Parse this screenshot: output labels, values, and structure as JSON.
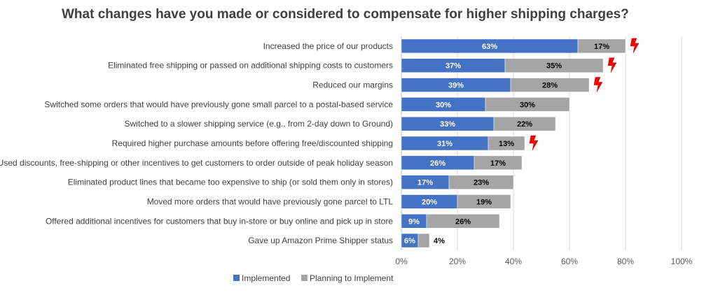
{
  "chart_data": {
    "type": "bar",
    "orientation": "horizontal",
    "stacked": true,
    "title": "What changes have you made or considered to compensate for higher shipping charges?",
    "xlabel": "",
    "ylabel": "",
    "xlim": [
      0,
      100
    ],
    "x_ticks": [
      "0%",
      "20%",
      "40%",
      "60%",
      "80%",
      "100%"
    ],
    "grid": true,
    "legend_position": "bottom",
    "categories": [
      "Increased the price of our products",
      "Eliminated free shipping or passed on additional shipping costs to customers",
      "Reduced our margins",
      "Switched some orders that would have previously gone small parcel to a postal-based service",
      "Switched to a slower shipping service (e.g., from 2-day down to Ground)",
      "Required higher purchase amounts before offering free/discounted shipping",
      "Used discounts, free-shipping or other incentives to get customers to order outside of peak holiday season",
      "Eliminated product lines that became too expensive to ship (or sold them only in stores)",
      "Moved more orders that would have previously gone parcel to LTL",
      "Offered additional incentives for customers that buy in-store or buy online and pick up in store",
      "Gave up Amazon Prime Shipper status"
    ],
    "series": [
      {
        "name": "Implemented",
        "color": "#4472C4",
        "values": [
          63,
          37,
          39,
          30,
          33,
          31,
          26,
          17,
          20,
          9,
          6
        ],
        "labels": [
          "63%",
          "37%",
          "39%",
          "30%",
          "33%",
          "31%",
          "26%",
          "17%",
          "20%",
          "9%",
          "6%"
        ]
      },
      {
        "name": "Planning to Implement",
        "color": "#A5A5A5",
        "values": [
          17,
          35,
          28,
          30,
          22,
          13,
          17,
          23,
          19,
          26,
          4
        ],
        "labels": [
          "17%",
          "35%",
          "28%",
          "30%",
          "22%",
          "13%",
          "17%",
          "23%",
          "19%",
          "26%",
          "4%"
        ]
      }
    ],
    "highlight_icon": "lightning-bolt-icon",
    "highlight_color": "#FF0000",
    "highlighted_categories": [
      0,
      1,
      2,
      5
    ]
  }
}
